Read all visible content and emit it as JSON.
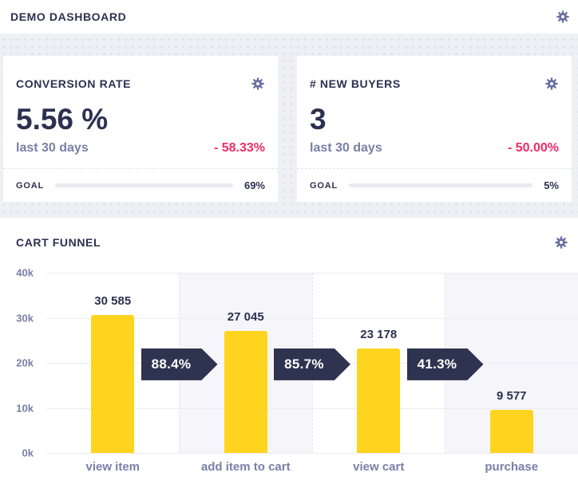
{
  "header": {
    "title": "DEMO DASHBOARD"
  },
  "cards": [
    {
      "title": "CONVERSION RATE",
      "value": "5.56 %",
      "period": "last 30 days",
      "change": "- 58.33%",
      "goal_label": "GOAL",
      "goal_pct_label": "69%",
      "goal_fill_pct": 69
    },
    {
      "title": "# NEW BUYERS",
      "value": "3",
      "period": "last 30 days",
      "change": "- 50.00%",
      "goal_label": "GOAL",
      "goal_pct_label": "5%",
      "goal_fill_pct": 5
    }
  ],
  "funnel": {
    "title": "CART FUNNEL"
  },
  "chart_data": {
    "type": "bar",
    "title": "CART FUNNEL",
    "categories": [
      "view item",
      "add item to cart",
      "view cart",
      "purchase"
    ],
    "values": [
      30585,
      27045,
      23178,
      9577
    ],
    "value_labels": [
      "30 585",
      "27 045",
      "23 178",
      "9 577"
    ],
    "conversion_badges": [
      "88.4%",
      "85.7%",
      "41.3%"
    ],
    "ylim": [
      0,
      40000
    ],
    "yticks": [
      "40k",
      "30k",
      "20k",
      "10k",
      "0k"
    ],
    "grid": true,
    "legend": "none",
    "bar_color": "#ffd41e",
    "badge_color": "#2e3450"
  },
  "colors": {
    "navy": "#2d3150",
    "purple": "#7a7fa8",
    "pink": "#f02a6a",
    "cyan": "#14b2d8",
    "yellow": "#ffd41e",
    "gear": "#6b70a1",
    "page-bg": "#eef0f4",
    "lavender": "#f5f5fa",
    "badge": "#2e3450"
  }
}
